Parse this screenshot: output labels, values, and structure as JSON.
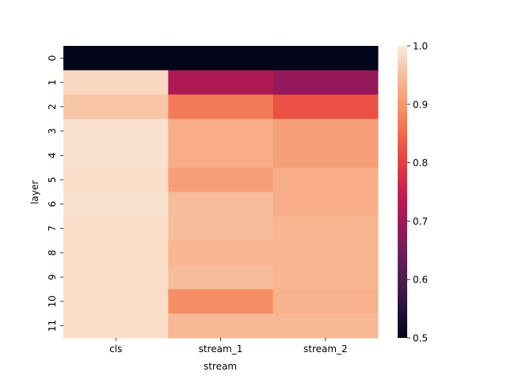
{
  "chart_data": {
    "type": "heatmap",
    "title": "",
    "xlabel": "stream",
    "ylabel": "layer",
    "x_categories": [
      "cls",
      "stream_1",
      "stream_2"
    ],
    "y_categories": [
      "0",
      "1",
      "2",
      "3",
      "4",
      "5",
      "6",
      "7",
      "8",
      "9",
      "10",
      "11"
    ],
    "values": [
      [
        0.5,
        0.5,
        0.5
      ],
      [
        0.98,
        0.72,
        0.69
      ],
      [
        0.96,
        0.87,
        0.82
      ],
      [
        0.99,
        0.93,
        0.91
      ],
      [
        0.99,
        0.93,
        0.91
      ],
      [
        0.985,
        0.91,
        0.93
      ],
      [
        0.99,
        0.95,
        0.93
      ],
      [
        0.985,
        0.95,
        0.94
      ],
      [
        0.985,
        0.94,
        0.94
      ],
      [
        0.985,
        0.95,
        0.94
      ],
      [
        0.985,
        0.89,
        0.935
      ],
      [
        0.985,
        0.945,
        0.945
      ]
    ],
    "colorbar": {
      "min": 0.5,
      "max": 1.0,
      "ticks": [
        "0.5",
        "0.6",
        "0.7",
        "0.8",
        "0.9",
        "1.0"
      ],
      "colormap": "rocket"
    },
    "grid": false,
    "legend": "colorbar-right"
  }
}
